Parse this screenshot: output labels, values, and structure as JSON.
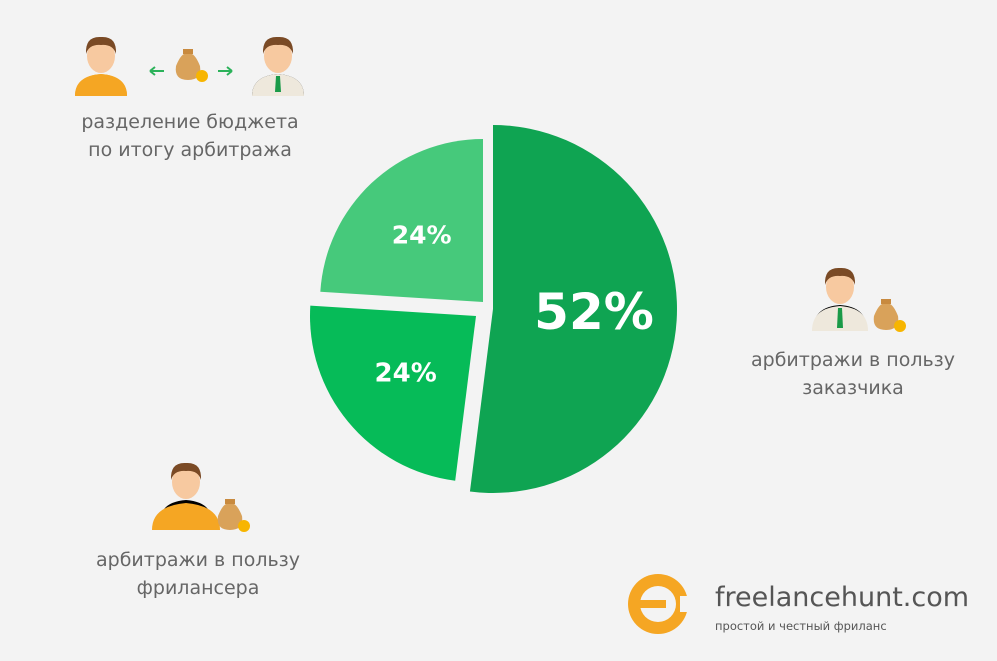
{
  "chart_data": {
    "type": "pie",
    "categories": [
      "арбитражи в пользу\nзаказчика",
      "арбитражи в пользу\nфрилансера",
      "разделение бюджета\nпо итогу арбитража"
    ],
    "values": [
      52,
      24,
      24
    ],
    "value_labels": [
      "52%",
      "24%",
      "24%"
    ],
    "colors": [
      "#0fa452",
      "#06bb58",
      "#46c97b"
    ]
  },
  "brand": {
    "name": "freelancehunt.com",
    "tagline": "простой и честный фриланс"
  }
}
